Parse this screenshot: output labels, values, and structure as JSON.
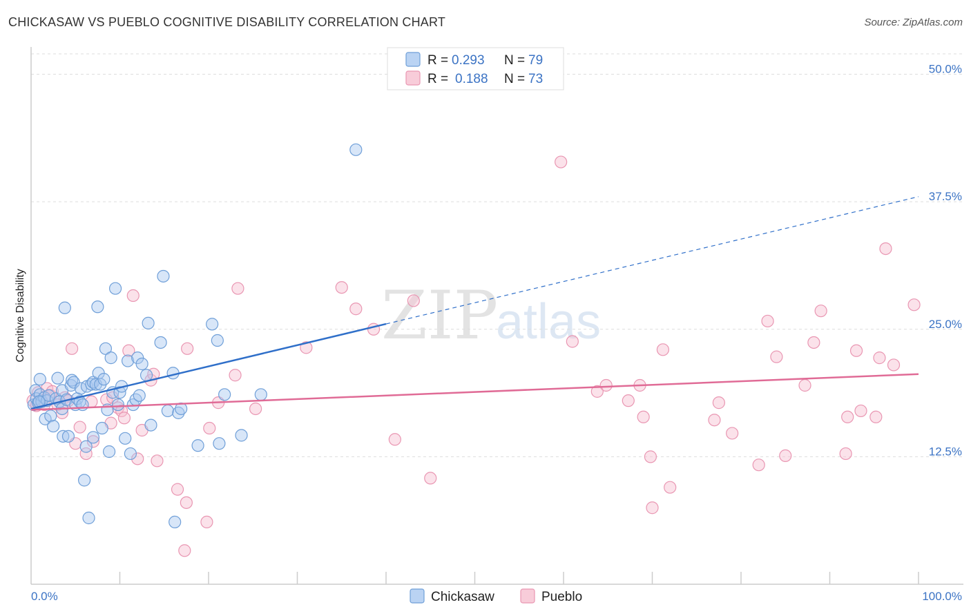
{
  "title": "CHICKASAW VS PUEBLO COGNITIVE DISABILITY CORRELATION CHART",
  "source": "Source: ZipAtlas.com",
  "watermark": {
    "zip": "ZIP",
    "atlas": "atlas"
  },
  "colors": {
    "chickasaw_fill": "#a9c8f0",
    "chickasaw_stroke": "#6f9fd8",
    "chickasaw_line": "#2f6fc9",
    "pueblo_fill": "#f6bfd0",
    "pueblo_stroke": "#e996b2",
    "pueblo_line": "#e06b96",
    "grid": "#dddddd",
    "tick_text": "#3b73c4"
  },
  "legend": {
    "rows": [
      {
        "series": "Chickasaw",
        "r_label": "R =",
        "r_value": "0.293",
        "n_label": "N =",
        "n_value": "79"
      },
      {
        "series": "Pueblo",
        "r_label": "R =",
        "r_value": "0.188",
        "n_label": "N =",
        "n_value": "73"
      }
    ]
  },
  "bottom_legend": [
    "Chickasaw",
    "Pueblo"
  ],
  "chart_data": {
    "type": "scatter",
    "title": "CHICKASAW VS PUEBLO COGNITIVE DISABILITY CORRELATION CHART",
    "xlabel": "",
    "ylabel": "Cognitive Disability",
    "xlim": [
      0,
      100
    ],
    "ylim": [
      0,
      52
    ],
    "x_tick_labels": [
      "0.0%",
      "100.0%"
    ],
    "y_ticks": [
      12.5,
      25.0,
      37.5,
      50.0
    ],
    "y_tick_labels": [
      "12.5%",
      "25.0%",
      "37.5%",
      "50.0%"
    ],
    "grid": true,
    "series": [
      {
        "name": "Chickasaw",
        "r": 0.293,
        "n": 79,
        "trend": {
          "x0": 0,
          "y0": 17.2,
          "x1": 100,
          "y1": 38.0,
          "solid_until_x": 40
        },
        "points": [
          [
            0.3,
            17.6
          ],
          [
            0.5,
            19.0
          ],
          [
            0.6,
            18.2
          ],
          [
            0.8,
            17.8
          ],
          [
            1.0,
            18.6
          ],
          [
            1.0,
            20.1
          ],
          [
            1.2,
            17.9
          ],
          [
            1.5,
            18.3
          ],
          [
            1.8,
            18.0
          ],
          [
            1.6,
            16.2
          ],
          [
            2.0,
            18.5
          ],
          [
            2.2,
            16.5
          ],
          [
            2.5,
            15.5
          ],
          [
            2.8,
            18.2
          ],
          [
            3.0,
            20.2
          ],
          [
            3.2,
            17.9
          ],
          [
            3.5,
            17.2
          ],
          [
            3.5,
            19.0
          ],
          [
            3.6,
            14.5
          ],
          [
            3.8,
            27.1
          ],
          [
            4.0,
            18.1
          ],
          [
            4.2,
            14.5
          ],
          [
            4.5,
            19.5
          ],
          [
            4.6,
            20.0
          ],
          [
            4.8,
            19.8
          ],
          [
            5.0,
            17.6
          ],
          [
            5.2,
            18.2
          ],
          [
            5.5,
            17.9
          ],
          [
            5.6,
            19.2
          ],
          [
            5.8,
            17.6
          ],
          [
            6.0,
            10.2
          ],
          [
            6.2,
            13.5
          ],
          [
            6.3,
            19.4
          ],
          [
            6.5,
            6.5
          ],
          [
            6.8,
            19.6
          ],
          [
            7.0,
            19.8
          ],
          [
            7.0,
            14.4
          ],
          [
            7.3,
            19.6
          ],
          [
            7.5,
            27.2
          ],
          [
            7.6,
            20.7
          ],
          [
            7.8,
            19.6
          ],
          [
            8.0,
            15.3
          ],
          [
            8.2,
            20.1
          ],
          [
            8.4,
            23.1
          ],
          [
            8.6,
            17.1
          ],
          [
            8.8,
            13.0
          ],
          [
            9.0,
            22.2
          ],
          [
            9.2,
            18.8
          ],
          [
            9.5,
            29.0
          ],
          [
            9.8,
            17.6
          ],
          [
            10.0,
            18.8
          ],
          [
            10.2,
            19.4
          ],
          [
            10.6,
            14.3
          ],
          [
            10.9,
            21.9
          ],
          [
            11.2,
            12.8
          ],
          [
            11.5,
            17.6
          ],
          [
            11.8,
            18.1
          ],
          [
            12.0,
            22.2
          ],
          [
            12.2,
            18.5
          ],
          [
            12.5,
            21.6
          ],
          [
            13.0,
            20.5
          ],
          [
            13.2,
            25.6
          ],
          [
            13.5,
            15.6
          ],
          [
            14.6,
            23.7
          ],
          [
            14.9,
            30.2
          ],
          [
            15.4,
            17.0
          ],
          [
            16.0,
            20.7
          ],
          [
            16.2,
            6.1
          ],
          [
            16.6,
            16.8
          ],
          [
            16.9,
            17.2
          ],
          [
            18.8,
            13.6
          ],
          [
            20.4,
            25.5
          ],
          [
            21.0,
            23.9
          ],
          [
            21.2,
            13.8
          ],
          [
            21.8,
            18.6
          ],
          [
            23.7,
            14.6
          ],
          [
            25.9,
            18.6
          ],
          [
            36.6,
            42.6
          ],
          [
            0.9,
            17.9
          ]
        ]
      },
      {
        "name": "Pueblo",
        "r": 0.188,
        "n": 73,
        "trend": {
          "x0": 0,
          "y0": 17.1,
          "x1": 100,
          "y1": 20.6
        },
        "points": [
          [
            0.2,
            18.0
          ],
          [
            0.6,
            17.5
          ],
          [
            0.8,
            18.8
          ],
          [
            1.2,
            18.0
          ],
          [
            1.5,
            17.6
          ],
          [
            1.8,
            19.2
          ],
          [
            2.2,
            18.5
          ],
          [
            2.4,
            18.9
          ],
          [
            3.0,
            17.6
          ],
          [
            3.5,
            16.8
          ],
          [
            3.8,
            18.3
          ],
          [
            4.2,
            18.0
          ],
          [
            4.6,
            23.1
          ],
          [
            5.0,
            13.8
          ],
          [
            5.5,
            15.4
          ],
          [
            6.2,
            12.8
          ],
          [
            6.8,
            17.9
          ],
          [
            7.0,
            14.0
          ],
          [
            8.5,
            18.1
          ],
          [
            9.0,
            15.8
          ],
          [
            9.2,
            18.3
          ],
          [
            9.8,
            17.3
          ],
          [
            10.2,
            17.0
          ],
          [
            10.5,
            16.3
          ],
          [
            11.0,
            22.9
          ],
          [
            11.5,
            28.3
          ],
          [
            12.0,
            12.3
          ],
          [
            12.5,
            15.1
          ],
          [
            13.5,
            20.0
          ],
          [
            13.8,
            20.6
          ],
          [
            14.2,
            12.1
          ],
          [
            16.5,
            9.3
          ],
          [
            17.5,
            8.0
          ],
          [
            17.6,
            23.1
          ],
          [
            17.3,
            3.3
          ],
          [
            19.8,
            6.1
          ],
          [
            20.1,
            15.3
          ],
          [
            21.1,
            17.8
          ],
          [
            23.0,
            20.5
          ],
          [
            23.3,
            29.0
          ],
          [
            25.3,
            17.2
          ],
          [
            31.0,
            23.2
          ],
          [
            35.0,
            29.1
          ],
          [
            36.6,
            27.0
          ],
          [
            38.6,
            25.0
          ],
          [
            41.0,
            14.2
          ],
          [
            43.1,
            27.8
          ],
          [
            45.0,
            10.4
          ],
          [
            61.0,
            23.8
          ],
          [
            59.7,
            41.4
          ],
          [
            63.8,
            18.9
          ],
          [
            64.8,
            19.5
          ],
          [
            67.3,
            18.0
          ],
          [
            68.6,
            19.5
          ],
          [
            69.0,
            16.4
          ],
          [
            69.8,
            12.5
          ],
          [
            70.0,
            7.5
          ],
          [
            71.2,
            23.0
          ],
          [
            72.0,
            9.5
          ],
          [
            77.0,
            16.1
          ],
          [
            77.5,
            17.8
          ],
          [
            79.0,
            14.8
          ],
          [
            82.0,
            11.7
          ],
          [
            83.0,
            25.8
          ],
          [
            84.0,
            22.3
          ],
          [
            85.0,
            12.6
          ],
          [
            87.2,
            19.5
          ],
          [
            88.2,
            23.7
          ],
          [
            89.0,
            26.8
          ],
          [
            91.8,
            12.8
          ],
          [
            92.0,
            16.4
          ],
          [
            93.0,
            22.9
          ],
          [
            93.5,
            17.0
          ]
        ],
        "extra_points": [
          [
            95.2,
            16.4
          ],
          [
            95.6,
            22.2
          ],
          [
            96.3,
            32.9
          ],
          [
            97.2,
            21.5
          ],
          [
            99.5,
            27.4
          ]
        ]
      }
    ]
  }
}
